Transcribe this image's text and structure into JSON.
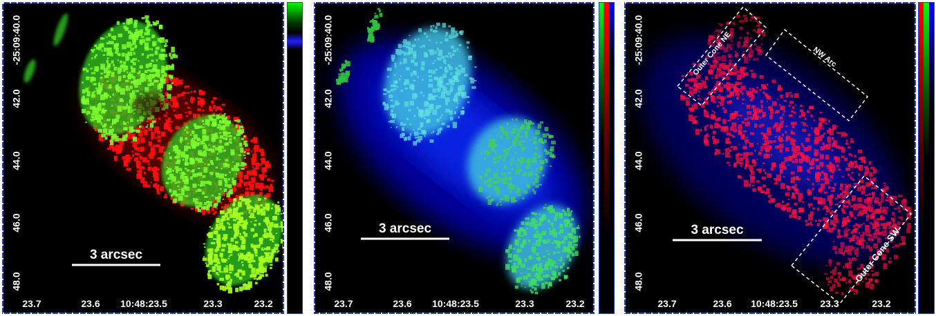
{
  "panels": [
    {
      "y_tick_labels": [
        "-25:09:40.0",
        "42.0",
        "44.0",
        "46.0",
        "48.0"
      ],
      "x_tick_labels": [
        "23.7",
        "23.6",
        "10:48:23.5",
        "23.3",
        "23.2"
      ],
      "scale_bar": "3 arcsec"
    },
    {
      "y_tick_labels": [
        "-25:09:40.0",
        "42.0",
        "44.0",
        "46.0",
        "48.0"
      ],
      "x_tick_labels": [
        "23.7",
        "23.6",
        "10:48:23.5",
        "23.3",
        "23.2"
      ],
      "scale_bar": "3 arcsec"
    },
    {
      "y_tick_labels": [
        "-25:09:40.0",
        "42.0",
        "44.0",
        "46.0",
        "48.0"
      ],
      "x_tick_labels": [
        "23.7",
        "23.6",
        "10:48:23.5",
        "23.3",
        "23.2"
      ],
      "scale_bar": "3 arcsec",
      "regions": [
        "Outer Cone NE",
        "NW Arc",
        "Outer Cone SW"
      ]
    }
  ]
}
